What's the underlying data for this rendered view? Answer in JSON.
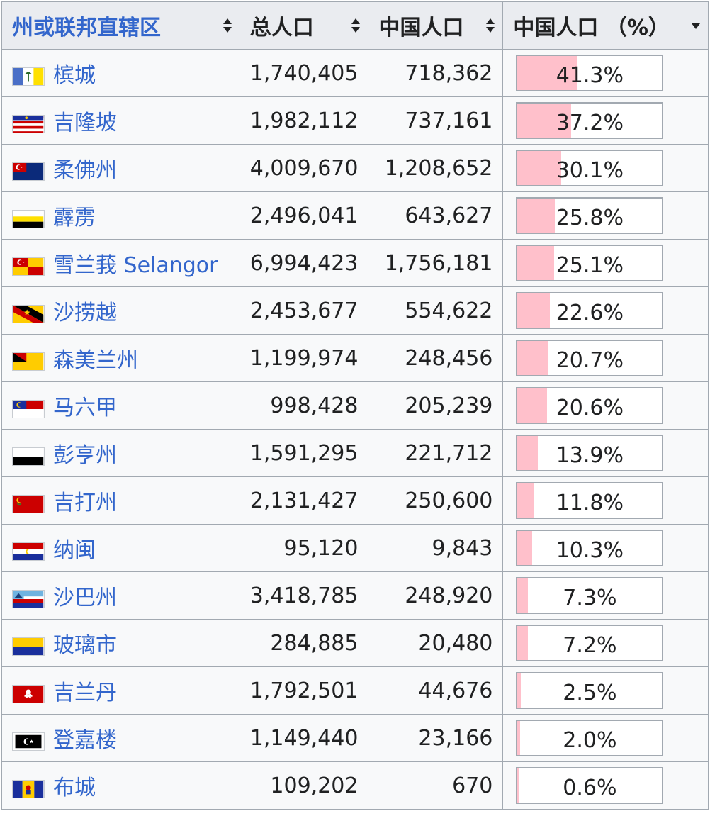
{
  "headers": [
    {
      "label": "州或联邦直辖区",
      "sort": "both"
    },
    {
      "label": "总人口",
      "sort": "both"
    },
    {
      "label": "中国人口",
      "sort": "both"
    },
    {
      "label": "中国人口 （%）",
      "sort": "down"
    }
  ],
  "rows": [
    {
      "name": "槟城",
      "flag": "penang-flag-icon",
      "total": "1,740,405",
      "chinese": "718,362",
      "pct_label": "41.3%",
      "pct": 41.3
    },
    {
      "name": "吉隆坡",
      "flag": "kuala-lumpur-flag-icon",
      "total": "1,982,112",
      "chinese": "737,161",
      "pct_label": "37.2%",
      "pct": 37.2
    },
    {
      "name": "柔佛州",
      "flag": "johor-flag-icon",
      "total": "4,009,670",
      "chinese": "1,208,652",
      "pct_label": "30.1%",
      "pct": 30.1
    },
    {
      "name": "霹雳",
      "flag": "perak-flag-icon",
      "total": "2,496,041",
      "chinese": "643,627",
      "pct_label": "25.8%",
      "pct": 25.8
    },
    {
      "name": "雪兰莪 Selangor",
      "flag": "selangor-flag-icon",
      "total": "6,994,423",
      "chinese": "1,756,181",
      "pct_label": "25.1%",
      "pct": 25.1
    },
    {
      "name": "沙捞越",
      "flag": "sarawak-flag-icon",
      "total": "2,453,677",
      "chinese": "554,622",
      "pct_label": "22.6%",
      "pct": 22.6
    },
    {
      "name": "森美兰州",
      "flag": "negeri-sembilan-flag-icon",
      "total": "1,199,974",
      "chinese": "248,456",
      "pct_label": "20.7%",
      "pct": 20.7
    },
    {
      "name": "马六甲",
      "flag": "malacca-flag-icon",
      "total": "998,428",
      "chinese": "205,239",
      "pct_label": "20.6%",
      "pct": 20.6
    },
    {
      "name": "彭亨州",
      "flag": "pahang-flag-icon",
      "total": "1,591,295",
      "chinese": "221,712",
      "pct_label": "13.9%",
      "pct": 13.9
    },
    {
      "name": "吉打州",
      "flag": "kedah-flag-icon",
      "total": "2,131,427",
      "chinese": "250,600",
      "pct_label": "11.8%",
      "pct": 11.8
    },
    {
      "name": "纳闽",
      "flag": "labuan-flag-icon",
      "total": "95,120",
      "chinese": "9,843",
      "pct_label": "10.3%",
      "pct": 10.3
    },
    {
      "name": "沙巴州",
      "flag": "sabah-flag-icon",
      "total": "3,418,785",
      "chinese": "248,920",
      "pct_label": "7.3%",
      "pct": 7.3
    },
    {
      "name": "玻璃市",
      "flag": "perlis-flag-icon",
      "total": "284,885",
      "chinese": "20,480",
      "pct_label": "7.2%",
      "pct": 7.2
    },
    {
      "name": "吉兰丹",
      "flag": "kelantan-flag-icon",
      "total": "1,792,501",
      "chinese": "44,676",
      "pct_label": "2.5%",
      "pct": 2.5
    },
    {
      "name": "登嘉楼",
      "flag": "terengganu-flag-icon",
      "total": "1,149,440",
      "chinese": "23,166",
      "pct_label": "2.0%",
      "pct": 2.0
    },
    {
      "name": "布城",
      "flag": "putrajaya-flag-icon",
      "total": "109,202",
      "chinese": "670",
      "pct_label": "0.6%",
      "pct": 0.6
    }
  ],
  "colors": {
    "link": "#3366cc",
    "bar": "#ffc0cb",
    "border": "#a2a9b1",
    "header_bg": "#eaecf0"
  }
}
